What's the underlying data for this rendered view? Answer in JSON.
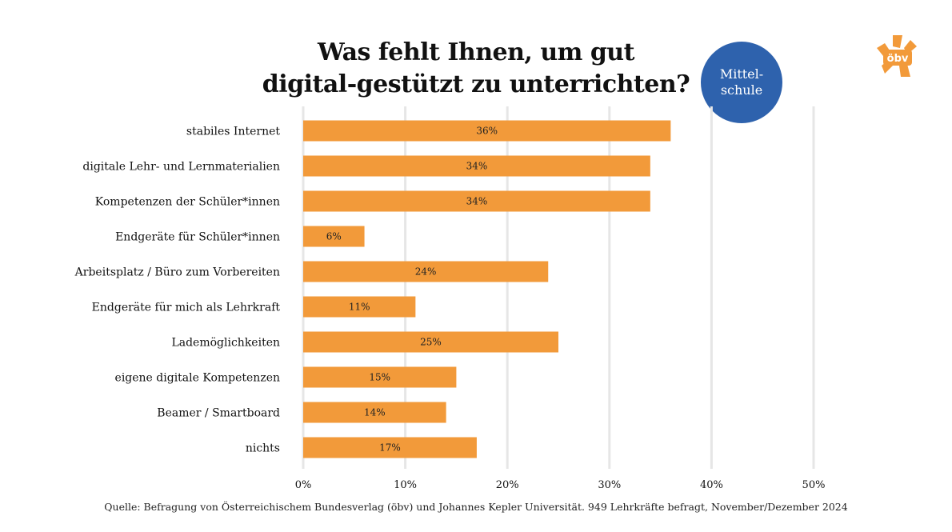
{
  "chart_data": {
    "type": "bar",
    "orientation": "horizontal",
    "title": "Was fehlt Ihnen, um gut digital-gestützt zu unterrichten?",
    "title_lines": [
      "Was fehlt Ihnen, um gut",
      "digital-gestützt zu unterrichten?"
    ],
    "categories": [
      "stabiles Internet",
      "digitale Lehr- und Lernmaterialien",
      "Kompetenzen der Schüler*innen",
      "Endgeräte für Schüler*innen",
      "Arbeitsplatz / Büro zum Vorbereiten",
      "Endgeräte für mich als Lehrkraft",
      "Lademöglichkeiten",
      "eigene digitale Kompetenzen",
      "Beamer / Smartboard",
      "nichts"
    ],
    "values": [
      36,
      34,
      34,
      6,
      24,
      11,
      25,
      15,
      14,
      17
    ],
    "value_labels": [
      "36%",
      "34%",
      "34%",
      "6%",
      "24%",
      "11%",
      "25%",
      "15%",
      "14%",
      "17%"
    ],
    "xlim": [
      0,
      50
    ],
    "xticks": [
      0,
      10,
      20,
      30,
      40,
      50
    ],
    "xtick_labels": [
      "0%",
      "10%",
      "20%",
      "30%",
      "40%",
      "50%"
    ],
    "xlabel": "",
    "ylabel": "",
    "grid": true,
    "bar_color": "#f29a3a",
    "grid_color": "#e6e6e6"
  },
  "badge": {
    "line1": "Mittel-",
    "line2": "schule",
    "color": "#2e62ad"
  },
  "logo": {
    "text": "öbv",
    "color": "#f29a3a"
  },
  "source": "Quelle: Befragung von Österreichischem Bundesverlag (öbv) und Johannes Kepler Universität. 949 Lehrkräfte befragt, November/Dezember 2024"
}
